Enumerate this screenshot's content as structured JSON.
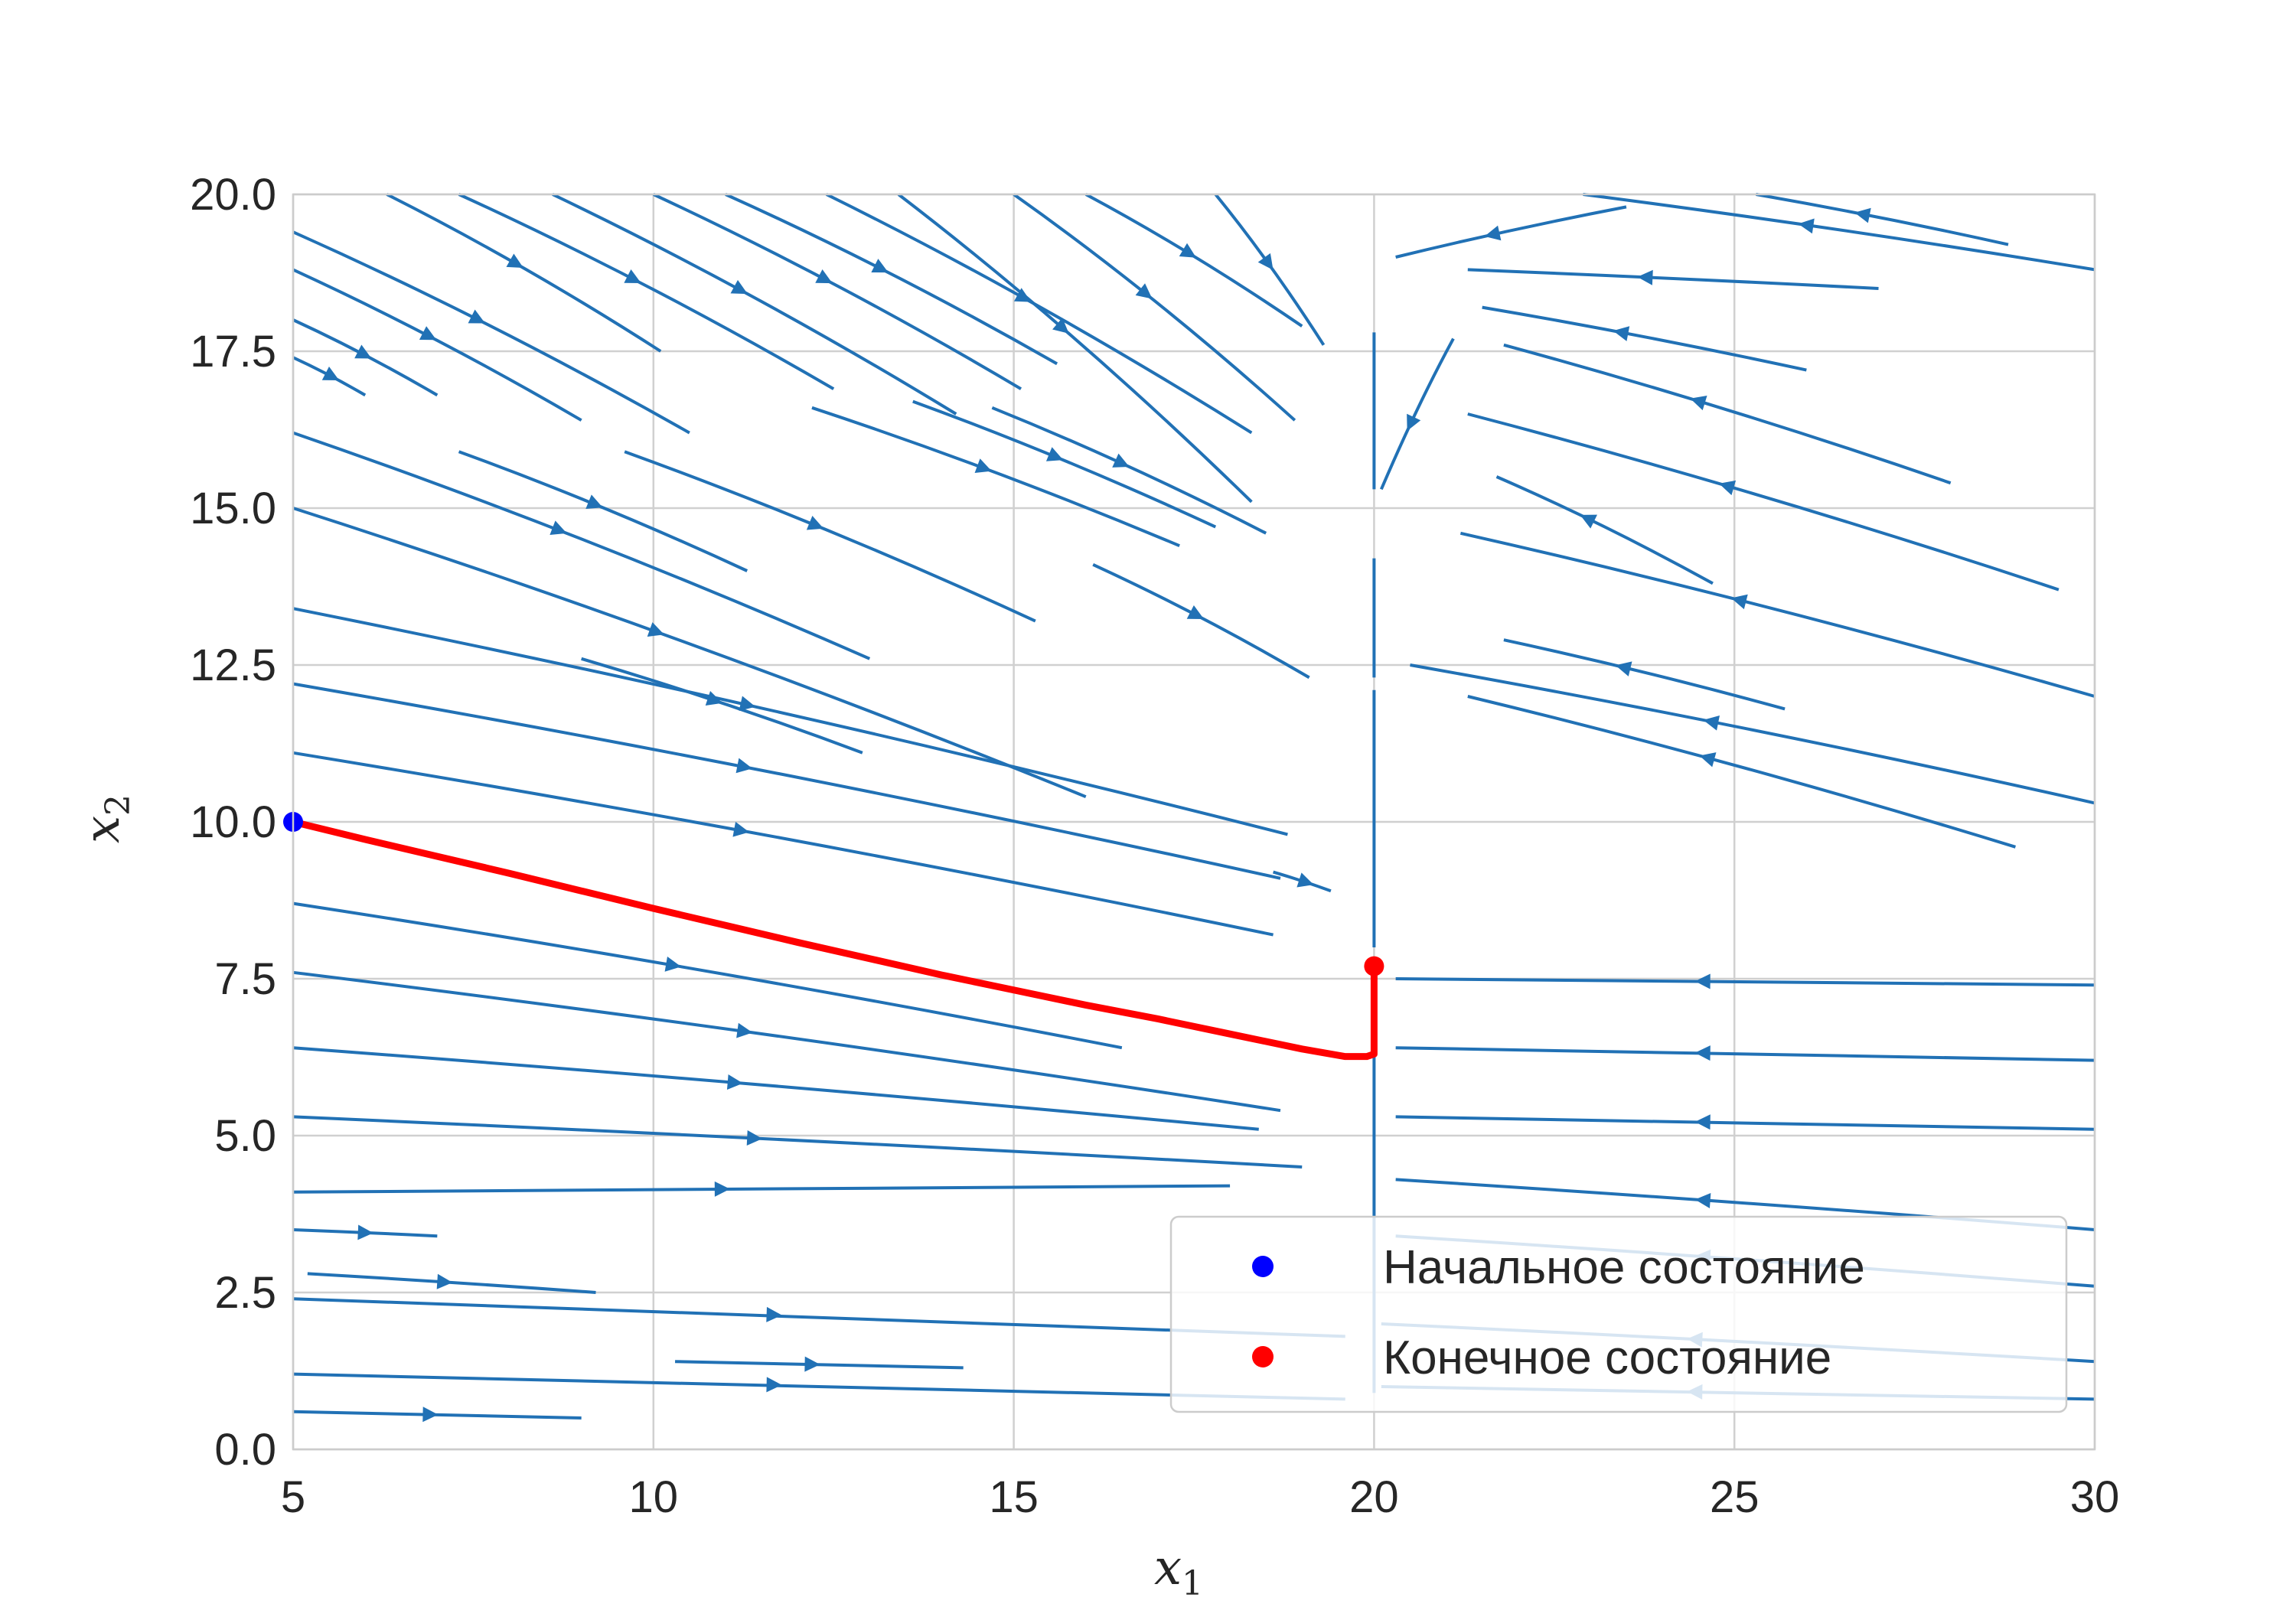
{
  "chart_data": {
    "type": "streamplot",
    "xlabel": "x",
    "xlabel_sub": "1",
    "ylabel": "x",
    "ylabel_sub": "2",
    "xlim": [
      5,
      30
    ],
    "ylim": [
      0,
      20
    ],
    "xticks": [
      "5",
      "10",
      "15",
      "20",
      "25",
      "30"
    ],
    "yticks": [
      "0.0",
      "2.5",
      "5.0",
      "7.5",
      "10.0",
      "12.5",
      "15.0",
      "17.5",
      "20.0"
    ],
    "grid": true,
    "legend_placement": "lower right",
    "colors": {
      "stream": "#2171b5",
      "trajectory": "#ff0000",
      "start": "#0000ff",
      "end": "#ff0000",
      "grid": "#d0d0d0"
    },
    "legend": [
      {
        "label": "Начальное состояние",
        "color": "#0000ff"
      },
      {
        "label": "Конечное состояние",
        "color": "#ff0000"
      }
    ],
    "start_point": {
      "x": 5,
      "y": 10
    },
    "end_point": {
      "x": 20,
      "y": 7.7
    },
    "trajectory": [
      [
        5,
        10
      ],
      [
        6,
        9.72
      ],
      [
        7,
        9.45
      ],
      [
        8,
        9.18
      ],
      [
        9,
        8.9
      ],
      [
        10,
        8.62
      ],
      [
        11,
        8.35
      ],
      [
        12,
        8.08
      ],
      [
        13,
        7.82
      ],
      [
        14,
        7.56
      ],
      [
        15,
        7.32
      ],
      [
        16,
        7.08
      ],
      [
        17,
        6.86
      ],
      [
        18,
        6.62
      ],
      [
        19,
        6.38
      ],
      [
        19.6,
        6.26
      ],
      [
        19.9,
        6.26
      ],
      [
        20,
        6.3
      ],
      [
        20,
        7.7
      ]
    ],
    "left_streamlines": [
      [
        [
          5,
          19.4
        ],
        [
          10.5,
          16.2
        ]
      ],
      [
        [
          5,
          18.8
        ],
        [
          9,
          16.4
        ]
      ],
      [
        [
          5,
          18
        ],
        [
          7,
          16.8
        ]
      ],
      [
        [
          5,
          17.4
        ],
        [
          6,
          16.8
        ]
      ],
      [
        [
          5,
          16.2
        ],
        [
          13,
          12.6
        ]
      ],
      [
        [
          5,
          15
        ],
        [
          16,
          10.4
        ]
      ],
      [
        [
          5,
          13.4
        ],
        [
          18.8,
          9.8
        ]
      ],
      [
        [
          5,
          12.2
        ],
        [
          18.7,
          9.1
        ]
      ],
      [
        [
          5,
          11.1
        ],
        [
          18.6,
          8.2
        ]
      ],
      [
        [
          5,
          8.7
        ],
        [
          16.5,
          6.4
        ]
      ],
      [
        [
          5,
          7.6
        ],
        [
          18.7,
          5.4
        ]
      ],
      [
        [
          5,
          6.4
        ],
        [
          18.4,
          5.1
        ]
      ],
      [
        [
          5,
          5.3
        ],
        [
          19,
          4.5
        ]
      ],
      [
        [
          5,
          4.1
        ],
        [
          18,
          4.2
        ]
      ],
      [
        [
          5,
          3.5
        ],
        [
          7,
          3.4
        ]
      ],
      [
        [
          5.2,
          2.8
        ],
        [
          9.2,
          2.5
        ]
      ],
      [
        [
          5,
          2.4
        ],
        [
          19.6,
          1.8
        ]
      ],
      [
        [
          5,
          1.2
        ],
        [
          19.6,
          0.8
        ]
      ],
      [
        [
          5,
          0.6
        ],
        [
          9,
          0.5
        ]
      ],
      [
        [
          10.3,
          1.4
        ],
        [
          14.3,
          1.3
        ]
      ],
      [
        [
          6.3,
          20
        ],
        [
          10.1,
          17.5
        ]
      ],
      [
        [
          7.3,
          20
        ],
        [
          12.5,
          16.9
        ]
      ],
      [
        [
          8.6,
          20
        ],
        [
          14.2,
          16.5
        ]
      ],
      [
        [
          10,
          20
        ],
        [
          15.1,
          16.9
        ]
      ],
      [
        [
          11,
          20
        ],
        [
          15.6,
          17.3
        ]
      ],
      [
        [
          12.4,
          20
        ],
        [
          18.3,
          16.2
        ]
      ],
      [
        [
          13.4,
          20
        ],
        [
          18.3,
          15.1
        ]
      ],
      [
        [
          15,
          20
        ],
        [
          18.9,
          16.4
        ]
      ],
      [
        [
          16,
          20
        ],
        [
          19.0,
          17.9
        ]
      ],
      [
        [
          17.8,
          20
        ],
        [
          19.3,
          17.6
        ]
      ],
      [
        [
          7.3,
          15.9
        ],
        [
          11.3,
          14
        ]
      ],
      [
        [
          9.6,
          15.9
        ],
        [
          15.3,
          13.2
        ]
      ],
      [
        [
          12.2,
          16.6
        ],
        [
          17.3,
          14.4
        ]
      ],
      [
        [
          13.6,
          16.7
        ],
        [
          17.8,
          14.7
        ]
      ],
      [
        [
          14.7,
          16.6
        ],
        [
          18.5,
          14.6
        ]
      ],
      [
        [
          16.1,
          14.1
        ],
        [
          19.1,
          12.3
        ]
      ],
      [
        [
          9,
          12.6
        ],
        [
          12.9,
          11.1
        ]
      ],
      [
        [
          18.6,
          9.2
        ],
        [
          19.4,
          8.9
        ]
      ]
    ],
    "right_streamlines": [
      [
        [
          21.3,
          18.8
        ],
        [
          27,
          18.5
        ]
      ],
      [
        [
          21.5,
          18.2
        ],
        [
          26,
          17.2
        ]
      ],
      [
        [
          21.8,
          17.6
        ],
        [
          28,
          15.4
        ]
      ],
      [
        [
          21.3,
          16.5
        ],
        [
          29.5,
          13.7
        ]
      ],
      [
        [
          21.7,
          15.5
        ],
        [
          24.7,
          13.8
        ]
      ],
      [
        [
          21.2,
          14.6
        ],
        [
          30,
          12
        ]
      ],
      [
        [
          21.8,
          12.9
        ],
        [
          25.7,
          11.8
        ]
      ],
      [
        [
          21.3,
          12
        ],
        [
          28.9,
          9.6
        ]
      ],
      [
        [
          20.5,
          12.5
        ],
        [
          30,
          10.3
        ]
      ],
      [
        [
          20.3,
          7.5
        ],
        [
          30,
          7.4
        ]
      ],
      [
        [
          20.3,
          6.4
        ],
        [
          30,
          6.2
        ]
      ],
      [
        [
          20.3,
          5.3
        ],
        [
          30,
          5.1
        ]
      ],
      [
        [
          20.3,
          4.3
        ],
        [
          30,
          3.5
        ]
      ],
      [
        [
          20.3,
          3.4
        ],
        [
          30,
          2.6
        ]
      ],
      [
        [
          20.1,
          2
        ],
        [
          30,
          1.4
        ]
      ],
      [
        [
          20.1,
          1
        ],
        [
          30,
          0.8
        ]
      ],
      [
        [
          22.9,
          20
        ],
        [
          30,
          18.8
        ]
      ],
      [
        [
          25.3,
          20
        ],
        [
          28.8,
          19.2
        ]
      ],
      [
        [
          20.3,
          19
        ],
        [
          23.5,
          19.8
        ]
      ],
      [
        [
          20.1,
          15.3
        ],
        [
          21.1,
          17.7
        ]
      ]
    ]
  }
}
